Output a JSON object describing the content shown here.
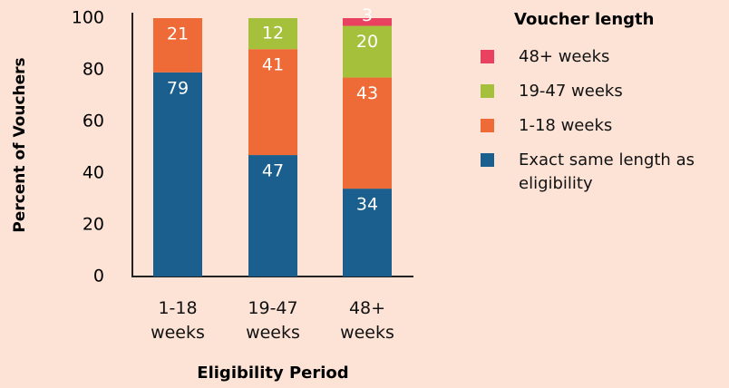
{
  "chart_data": {
    "type": "stacked_bar",
    "categories": [
      "1-18 weeks",
      "19-47 weeks",
      "48+ weeks"
    ],
    "x_label": "Eligibility Period",
    "y_label": "Percent of Vouchers",
    "legend_title": "Voucher length",
    "series": [
      {
        "name": "Exact same length as eligibility",
        "color": "#1a5f8e",
        "values": [
          79,
          47,
          34
        ]
      },
      {
        "name": "1-18 weeks",
        "color": "#ee6a37",
        "values": [
          21,
          41,
          43
        ]
      },
      {
        "name": "19-47 weeks",
        "color": "#a5c03b",
        "values": [
          null,
          12,
          20
        ]
      },
      {
        "name": "48+ weeks",
        "color": "#e84260",
        "values": [
          null,
          null,
          3
        ]
      }
    ],
    "ylim": [
      0,
      100
    ],
    "yticks": [
      0,
      20,
      40,
      60,
      80,
      100
    ],
    "grid": false,
    "legend": "right"
  }
}
